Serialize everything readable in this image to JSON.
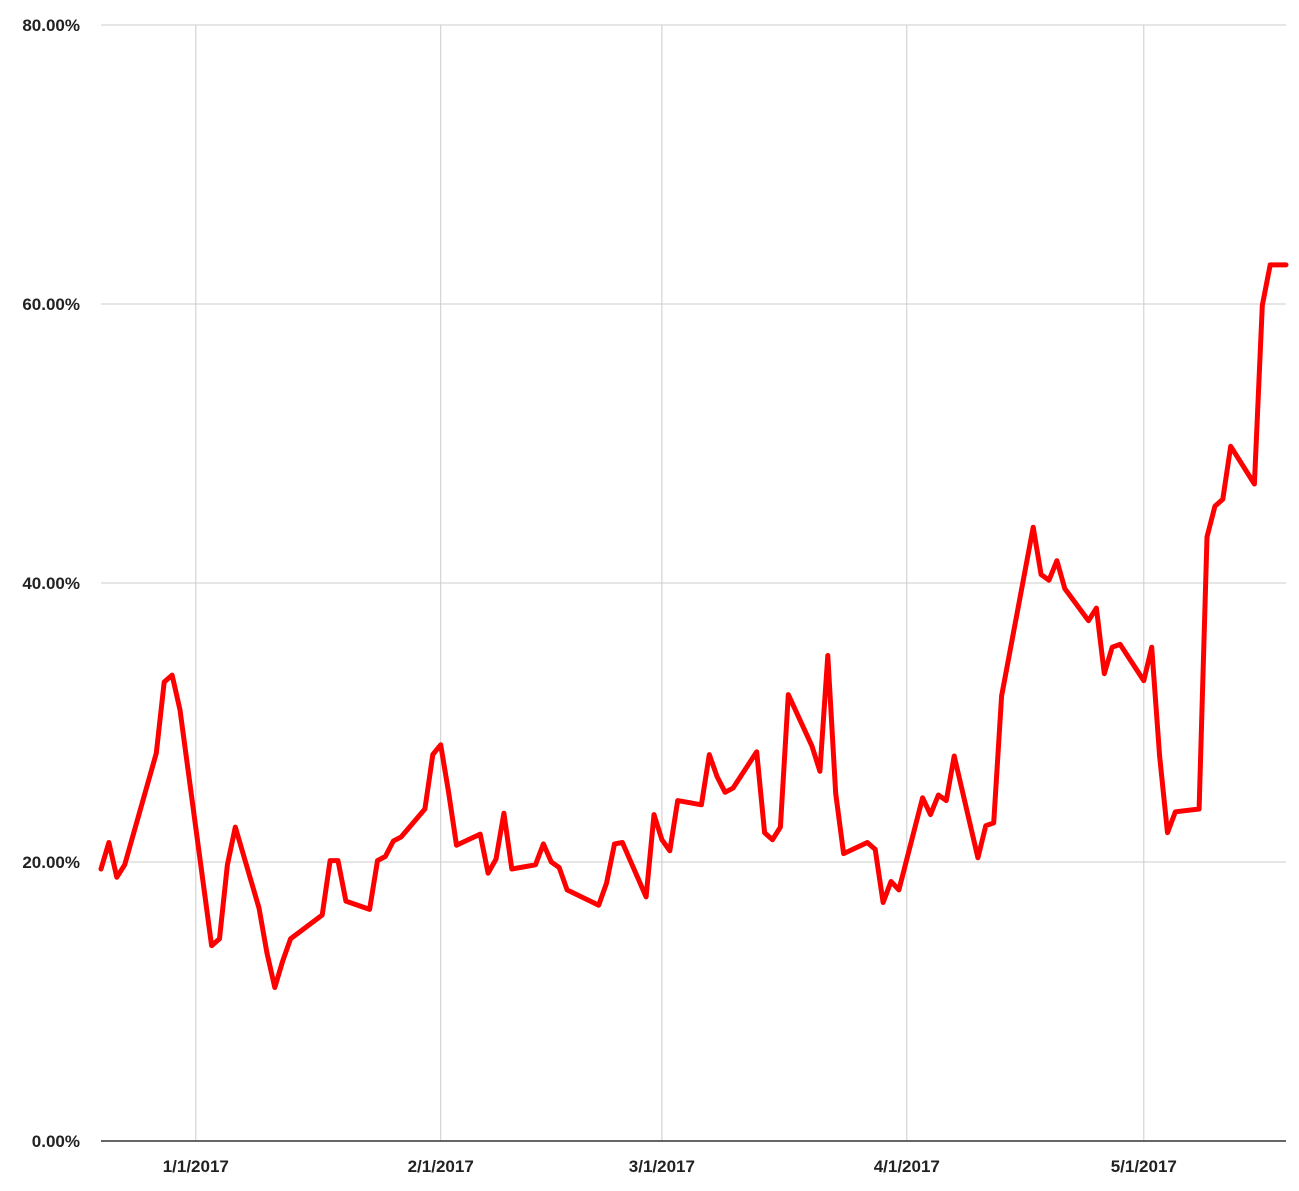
{
  "chart_data": {
    "type": "line",
    "title": "",
    "xlabel": "",
    "ylabel": "",
    "ylim": [
      0,
      80
    ],
    "xlim": [
      "2016-12-20",
      "2017-05-19"
    ],
    "y_ticks": [
      {
        "value": 0,
        "label": "0.00%"
      },
      {
        "value": 20,
        "label": "20.00%"
      },
      {
        "value": 40,
        "label": "40.00%"
      },
      {
        "value": 60,
        "label": "60.00%"
      },
      {
        "value": 80,
        "label": "80.00%"
      }
    ],
    "x_ticks": [
      {
        "value": "2017-01-01",
        "label": "1/1/2017"
      },
      {
        "value": "2017-02-01",
        "label": "2/1/2017"
      },
      {
        "value": "2017-03-01",
        "label": "3/1/2017"
      },
      {
        "value": "2017-04-01",
        "label": "4/1/2017"
      },
      {
        "value": "2017-05-01",
        "label": "5/1/2017"
      }
    ],
    "grid": true,
    "legend": "none",
    "series": [
      {
        "color": "#ff0000",
        "x": [
          "2016-12-20",
          "2016-12-21",
          "2016-12-22",
          "2016-12-23",
          "2016-12-27",
          "2016-12-28",
          "2016-12-29",
          "2016-12-30",
          "2017-01-03",
          "2017-01-04",
          "2017-01-05",
          "2017-01-06",
          "2017-01-09",
          "2017-01-10",
          "2017-01-11",
          "2017-01-12",
          "2017-01-13",
          "2017-01-17",
          "2017-01-18",
          "2017-01-19",
          "2017-01-20",
          "2017-01-23",
          "2017-01-24",
          "2017-01-25",
          "2017-01-26",
          "2017-01-27",
          "2017-01-30",
          "2017-01-31",
          "2017-02-01",
          "2017-02-02",
          "2017-02-03",
          "2017-02-06",
          "2017-02-07",
          "2017-02-08",
          "2017-02-09",
          "2017-02-10",
          "2017-02-13",
          "2017-02-14",
          "2017-02-15",
          "2017-02-16",
          "2017-02-17",
          "2017-02-21",
          "2017-02-22",
          "2017-02-23",
          "2017-02-24",
          "2017-02-27",
          "2017-02-28",
          "2017-03-01",
          "2017-03-02",
          "2017-03-03",
          "2017-03-06",
          "2017-03-07",
          "2017-03-08",
          "2017-03-09",
          "2017-03-10",
          "2017-03-13",
          "2017-03-14",
          "2017-03-15",
          "2017-03-16",
          "2017-03-17",
          "2017-03-20",
          "2017-03-21",
          "2017-03-22",
          "2017-03-23",
          "2017-03-24",
          "2017-03-27",
          "2017-03-28",
          "2017-03-29",
          "2017-03-30",
          "2017-03-31",
          "2017-04-03",
          "2017-04-04",
          "2017-04-05",
          "2017-04-06",
          "2017-04-07",
          "2017-04-10",
          "2017-04-11",
          "2017-04-12",
          "2017-04-13",
          "2017-04-17",
          "2017-04-18",
          "2017-04-19",
          "2017-04-20",
          "2017-04-21",
          "2017-04-24",
          "2017-04-25",
          "2017-04-26",
          "2017-04-27",
          "2017-04-28",
          "2017-05-01",
          "2017-05-02",
          "2017-05-03",
          "2017-05-04",
          "2017-05-05",
          "2017-05-08",
          "2017-05-09",
          "2017-05-10",
          "2017-05-11",
          "2017-05-12",
          "2017-05-15",
          "2017-05-16",
          "2017-05-17",
          "2017-05-18",
          "2017-05-19"
        ],
        "y": [
          19.5,
          21.4,
          18.9,
          19.8,
          27.8,
          32.9,
          33.4,
          30.9,
          14.0,
          14.5,
          19.8,
          22.5,
          16.7,
          13.5,
          11.0,
          12.9,
          14.5,
          16.2,
          20.1,
          20.1,
          17.2,
          16.6,
          20.1,
          20.4,
          21.5,
          21.8,
          23.8,
          27.7,
          28.4,
          25.0,
          21.2,
          22.0,
          19.2,
          20.2,
          23.5,
          19.5,
          19.8,
          21.3,
          20.0,
          19.6,
          18.0,
          16.9,
          18.5,
          21.3,
          21.4,
          17.5,
          23.4,
          21.6,
          20.8,
          24.4,
          24.1,
          27.7,
          26.1,
          25.0,
          25.3,
          27.9,
          22.1,
          21.6,
          22.5,
          32.0,
          28.3,
          26.5,
          34.8,
          24.9,
          20.6,
          21.4,
          20.9,
          17.1,
          18.6,
          18.0,
          24.6,
          23.4,
          24.8,
          24.4,
          27.6,
          20.3,
          22.6,
          22.8,
          31.9,
          44.0,
          40.6,
          40.2,
          41.6,
          39.6,
          37.3,
          38.2,
          33.5,
          35.4,
          35.6,
          33.0,
          35.4,
          27.6,
          22.1,
          23.6,
          23.8,
          43.3,
          45.5,
          46.0,
          49.8,
          47.1,
          59.9,
          62.8,
          62.8,
          62.8
        ]
      }
    ]
  }
}
